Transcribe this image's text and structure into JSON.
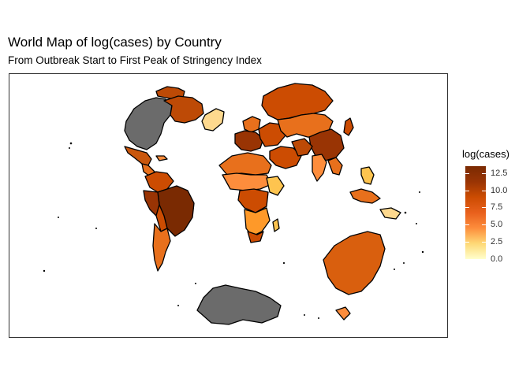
{
  "title": "World Map of log(cases) by Country",
  "subtitle": "From Outbreak Start to First Peak of Stringency Index",
  "legend": {
    "title": "log(cases)",
    "ticks": [
      "12.5",
      "10.0",
      "7.5",
      "5.0",
      "2.5",
      "0.0"
    ],
    "tick_values": [
      12.5,
      10.0,
      7.5,
      5.0,
      2.5,
      0.0
    ],
    "range": [
      0,
      13.5
    ],
    "gradient": [
      "#FFFFCC",
      "#FED976",
      "#FD8D3C",
      "#E8601C",
      "#CC4C02",
      "#993404",
      "#7A2A02"
    ]
  },
  "colors": {
    "no_data": "#6b6b6b",
    "border": "#000000",
    "ocean": "#ffffff"
  }
}
